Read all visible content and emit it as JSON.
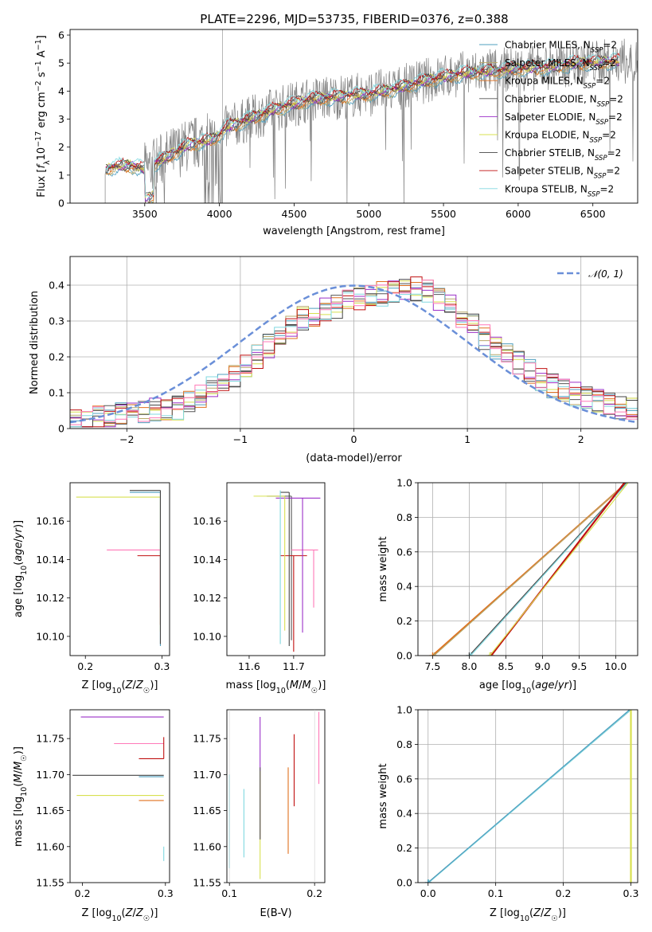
{
  "figure": {
    "title": "PLATE=2296, MJD=53735, FIBERID=0376, z=0.388"
  },
  "colors": {
    "Chabrier MILES": "#4f9fbf",
    "Salpeter MILES": "#b8a86a",
    "Kroupa MILES": "#e0701f",
    "Chabrier ELODIE": "#555555",
    "Salpeter ELODIE": "#9b30c8",
    "Kroupa ELODIE": "#d8e050",
    "Chabrier STELIB": "#444444",
    "Salpeter STELIB": "#c01010",
    "Kroupa STELIB": "#80d8e0",
    "pink": "#ff79b8",
    "data": "#808080",
    "normal": "#6a8fd8"
  },
  "chart_data": [
    {
      "id": "spectrum",
      "type": "line",
      "title": "PLATE=2296, MJD=53735, FIBERID=0376, z=0.388",
      "xlabel": "wavelength [Angstrom, rest frame]",
      "ylabel_parts": [
        "Flux [",
        "f",
        "λ",
        "10",
        "−17",
        " erg cm",
        "−2",
        " s",
        "−1",
        " A",
        "−1",
        "]"
      ],
      "xlim": [
        3000,
        6800
      ],
      "ylim": [
        0,
        6.2
      ],
      "xticks": [
        3500,
        4000,
        4500,
        5000,
        5500,
        6000,
        6500
      ],
      "yticks": [
        0,
        1,
        2,
        3,
        4,
        5,
        6
      ],
      "model_anchor_x": [
        3240,
        3300,
        3400,
        3500,
        3600,
        3700,
        3800,
        3900,
        3970,
        4050,
        4200,
        4400,
        4600,
        4800,
        5000,
        5200,
        5400,
        5600,
        5800,
        6000,
        6200,
        6400,
        6600
      ],
      "model_anchor_y": [
        1.2,
        1.3,
        1.35,
        1.2,
        1.5,
        1.8,
        2.1,
        2.2,
        2.3,
        2.7,
        3.0,
        3.4,
        3.7,
        3.8,
        3.9,
        4.1,
        4.4,
        4.6,
        4.7,
        4.8,
        4.85,
        5.0,
        5.05
      ],
      "data_noise_amplitude": 1.1,
      "legend": [
        {
          "label": "Chabrier MILES",
          "sub": "N",
          "ssp": "SSP",
          "value": "=2"
        },
        {
          "label": "Salpeter MILES",
          "sub": "N",
          "ssp": "SSP",
          "value": "=2"
        },
        {
          "label": "Kroupa MILES",
          "sub": "N",
          "ssp": "SSP",
          "value": "=2"
        },
        {
          "label": "Chabrier ELODIE",
          "sub": "N",
          "ssp": "SSP",
          "value": "=2"
        },
        {
          "label": "Salpeter ELODIE",
          "sub": "N",
          "ssp": "SSP",
          "value": "=2"
        },
        {
          "label": "Kroupa ELODIE",
          "sub": "N",
          "ssp": "SSP",
          "value": "=2"
        },
        {
          "label": "Chabrier STELIB",
          "sub": "N",
          "ssp": "SSP",
          "value": "=2"
        },
        {
          "label": "Salpeter STELIB",
          "sub": "N",
          "ssp": "SSP",
          "value": "=2"
        },
        {
          "label": "Kroupa STELIB",
          "sub": "N",
          "ssp": "SSP",
          "value": "=2"
        }
      ],
      "legend_placement": "right"
    },
    {
      "id": "residuals",
      "type": "histogram",
      "xlabel": "(data-model)/error",
      "ylabel": "Normed distribution",
      "xlim": [
        -2.5,
        2.5
      ],
      "ylim": [
        0,
        0.48
      ],
      "xticks": [
        -2,
        -1,
        0,
        1,
        2
      ],
      "yticks": [
        0.0,
        0.1,
        0.2,
        0.3,
        0.4
      ],
      "grid": true,
      "normal_curve": {
        "label": "𝒩(0, 1)",
        "mean": 0,
        "sigma": 1
      },
      "bin_width": 0.1,
      "envelope_x": [
        -2.5,
        -2.0,
        -1.5,
        -1.0,
        -0.5,
        0.0,
        0.3,
        0.6,
        0.9,
        1.2,
        1.5,
        1.8,
        2.1,
        2.5
      ],
      "envelope_y": [
        0.02,
        0.04,
        0.06,
        0.16,
        0.3,
        0.36,
        0.38,
        0.39,
        0.33,
        0.24,
        0.17,
        0.11,
        0.08,
        0.05
      ],
      "legend_placement": "top-right"
    },
    {
      "id": "age-vs-Z",
      "type": "errorbar",
      "xlabel": "Z [log10(Z/Z☉)]",
      "ylabel": "age [log10(age/yr)]",
      "xlim": [
        0.18,
        0.31
      ],
      "ylim": [
        10.09,
        10.18
      ],
      "xticks": [
        "0.2",
        "0.3"
      ],
      "yticks": [
        "10.10",
        "10.12",
        "10.14",
        "10.16"
      ],
      "points": [
        {
          "x": 0.298,
          "y": 10.175,
          "xerr": [
            0.04,
            0.0
          ],
          "yerr": [
            0.08,
            0.0
          ],
          "color": "Chabrier MILES"
        },
        {
          "x": 0.298,
          "y": 10.1725,
          "xerr": [
            0.11,
            0.0
          ],
          "yerr": [
            0.07,
            0.0
          ],
          "color": "Kroupa ELODIE"
        },
        {
          "x": 0.298,
          "y": 10.145,
          "xerr": [
            0.07,
            0.0
          ],
          "yerr": [
            0.03,
            0.0
          ],
          "color": "pink"
        },
        {
          "x": 0.298,
          "y": 10.142,
          "xerr": [
            0.03,
            0.0
          ],
          "yerr": [
            0.036,
            0.0
          ],
          "color": "Salpeter STELIB"
        },
        {
          "x": 0.298,
          "y": 10.176,
          "xerr": [
            0.04,
            0.0
          ],
          "yerr": [
            0.08,
            0.0
          ],
          "color": "Chabrier STELIB"
        }
      ]
    },
    {
      "id": "age-vs-mass",
      "type": "errorbar",
      "xlabel": "mass [log10(M/M☉)]",
      "xlim": [
        11.55,
        11.77
      ],
      "ylim": [
        10.09,
        10.18
      ],
      "xticks": [
        "11.6",
        "11.7"
      ],
      "yticks": [
        "10.10",
        "10.12",
        "10.14",
        "10.16"
      ],
      "points": [
        {
          "x": 11.695,
          "y": 10.173,
          "xerr": [
            0.055,
            0.0
          ],
          "yerr": [
            0.075,
            0.0
          ],
          "color": "Chabrier ELODIE"
        },
        {
          "x": 11.7,
          "y": 10.142,
          "xerr": [
            0.03,
            0.03
          ],
          "yerr": [
            0.05,
            0.0
          ],
          "color": "Salpeter STELIB"
        },
        {
          "x": 11.745,
          "y": 10.145,
          "xerr": [
            0.05,
            0.01
          ],
          "yerr": [
            0.03,
            0.0
          ],
          "color": "pink"
        },
        {
          "x": 11.72,
          "y": 10.172,
          "xerr": [
            0.06,
            0.04
          ],
          "yerr": [
            0.07,
            0.0
          ],
          "color": "Salpeter ELODIE"
        },
        {
          "x": 11.69,
          "y": 10.175,
          "xerr": [
            0.02,
            0.0
          ],
          "yerr": [
            0.08,
            0.0
          ],
          "color": "Chabrier STELIB"
        },
        {
          "x": 11.68,
          "y": 10.173,
          "xerr": [
            0.07,
            0.0
          ],
          "yerr": [
            0.07,
            0.0
          ],
          "color": "Kroupa ELODIE"
        },
        {
          "x": 11.67,
          "y": 10.176,
          "xerr": [
            0.0,
            0.0
          ],
          "yerr": [
            0.08,
            0.0
          ],
          "color": "Kroupa STELIB"
        }
      ]
    },
    {
      "id": "cum-mass-age",
      "type": "line",
      "xlabel": "age [log10(age/yr)]",
      "ylabel": "mass weight",
      "xlim": [
        7.3,
        10.3
      ],
      "ylim": [
        0,
        1
      ],
      "xticks": [
        "7.5",
        "8.0",
        "8.5",
        "9.0",
        "9.5",
        "10.0"
      ],
      "yticks": [
        "0.0",
        "0.2",
        "0.4",
        "0.6",
        "0.8",
        "1.0"
      ],
      "grid": true,
      "series": [
        {
          "color": "Kroupa MILES",
          "x": [
            7.5,
            10.15
          ],
          "y": [
            0,
            1
          ]
        },
        {
          "color": "Salpeter MILES",
          "x": [
            7.52,
            10.15
          ],
          "y": [
            0,
            1
          ]
        },
        {
          "color": "Chabrier STELIB",
          "x": [
            8.0,
            10.15
          ],
          "y": [
            0,
            1
          ]
        },
        {
          "color": "Kroupa STELIB",
          "x": [
            8.02,
            10.16
          ],
          "y": [
            0,
            1
          ]
        },
        {
          "color": "Salpeter STELIB",
          "x": [
            8.3,
            10.12
          ],
          "y": [
            0,
            1
          ]
        },
        {
          "color": "Kroupa ELODIE",
          "x": [
            8.28,
            10.17
          ],
          "y": [
            0,
            1
          ]
        }
      ]
    },
    {
      "id": "mass-vs-Z",
      "type": "errorbar",
      "xlabel": "Z [log10(Z/Z☉)]",
      "ylabel": "mass [log10(M/M☉)]",
      "xlim": [
        0.185,
        0.305
      ],
      "ylim": [
        11.55,
        11.79
      ],
      "xticks": [
        "0.2",
        "0.3"
      ],
      "yticks": [
        "11.55",
        "11.60",
        "11.65",
        "11.70",
        "11.75"
      ],
      "points": [
        {
          "x": 0.298,
          "y": 11.78,
          "xerr": [
            0.1,
            0.0
          ],
          "yerr": [
            0.0,
            0.0
          ],
          "color": "Salpeter ELODIE"
        },
        {
          "x": 0.298,
          "y": 11.743,
          "xerr": [
            0.06,
            0.0
          ],
          "yerr": [
            0.0,
            0.0
          ],
          "color": "pink"
        },
        {
          "x": 0.298,
          "y": 11.722,
          "xerr": [
            0.03,
            0.0
          ],
          "yerr": [
            0.0,
            0.03
          ],
          "color": "Salpeter STELIB"
        },
        {
          "x": 0.298,
          "y": 11.699,
          "xerr": [
            0.11,
            0.0
          ],
          "yerr": [
            0.0,
            0.0
          ],
          "color": "Chabrier STELIB"
        },
        {
          "x": 0.298,
          "y": 11.697,
          "xerr": [
            0.03,
            0.0
          ],
          "yerr": [
            0.0,
            0.0
          ],
          "color": "Chabrier MILES"
        },
        {
          "x": 0.298,
          "y": 11.671,
          "xerr": [
            0.105,
            0.0
          ],
          "yerr": [
            0.0,
            0.0
          ],
          "color": "Kroupa ELODIE"
        },
        {
          "x": 0.298,
          "y": 11.664,
          "xerr": [
            0.03,
            0.0
          ],
          "yerr": [
            0.0,
            0.0
          ],
          "color": "Kroupa MILES"
        },
        {
          "x": 0.298,
          "y": 11.6,
          "xerr": [
            0.0,
            0.0
          ],
          "yerr": [
            0.02,
            0.0
          ],
          "color": "Kroupa STELIB"
        }
      ]
    },
    {
      "id": "mass-vs-ebv",
      "type": "errorbar",
      "xlabel": "E(B-V)",
      "xlim": [
        0.097,
        0.212
      ],
      "ylim": [
        11.55,
        11.79
      ],
      "xticks": [
        "0.1",
        "0.2"
      ],
      "yticks": [
        "11.55",
        "11.60",
        "11.65",
        "11.70",
        "11.75"
      ],
      "points": [
        {
          "x": 0.117,
          "y": 11.63,
          "yerr": [
            0.045,
            0.05
          ],
          "color": "Kroupa STELIB"
        },
        {
          "x": 0.1,
          "y": 11.63,
          "yerr": [
            0.06,
            0.07
          ],
          "color": "Kroupa STELIB"
        },
        {
          "x": 0.136,
          "y": 11.7,
          "yerr": [
            0.09,
            0.08
          ],
          "color": "Salpeter ELODIE"
        },
        {
          "x": 0.136,
          "y": 11.615,
          "yerr": [
            0.06,
            0.09
          ],
          "color": "Kroupa ELODIE"
        },
        {
          "x": 0.136,
          "y": 11.66,
          "yerr": [
            0.05,
            0.05
          ],
          "color": "Chabrier ELODIE"
        },
        {
          "x": 0.169,
          "y": 11.64,
          "yerr": [
            0.05,
            0.07
          ],
          "color": "Kroupa MILES"
        },
        {
          "x": 0.176,
          "y": 11.706,
          "yerr": [
            0.05,
            0.05
          ],
          "color": "Salpeter STELIB"
        },
        {
          "x": 0.205,
          "y": 11.737,
          "yerr": [
            0.05,
            0.05
          ],
          "color": "pink"
        }
      ]
    },
    {
      "id": "cum-mass-Z",
      "type": "line",
      "xlabel": "Z [log10(Z/Z☉)]",
      "ylabel": "mass weight",
      "xlim": [
        -0.015,
        0.31
      ],
      "ylim": [
        0,
        1
      ],
      "xticks": [
        "0.0",
        "0.1",
        "0.2",
        "0.3"
      ],
      "yticks": [
        "0.0",
        "0.2",
        "0.4",
        "0.6",
        "0.8",
        "1.0"
      ],
      "grid": true,
      "series": [
        {
          "color": "Chabrier STELIB",
          "x": [
            0.0,
            0.3
          ],
          "y": [
            0,
            1
          ]
        },
        {
          "color": "Kroupa STELIB",
          "x": [
            0.001,
            0.3
          ],
          "y": [
            0,
            1
          ]
        },
        {
          "color": "Chabrier MILES",
          "x": [
            0.0,
            0.298
          ],
          "y": [
            0,
            1
          ]
        }
      ],
      "vertical_line": {
        "color": "Kroupa ELODIE",
        "x": 0.3,
        "y": [
          0,
          1
        ]
      }
    }
  ]
}
